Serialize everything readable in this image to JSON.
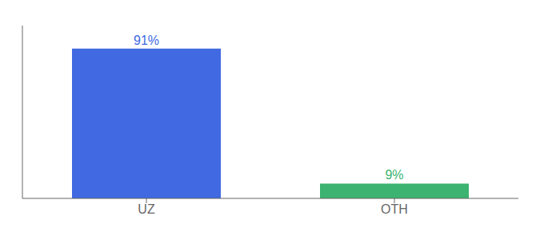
{
  "chart_data": {
    "type": "bar",
    "categories": [
      "UZ",
      "OTH"
    ],
    "values": [
      91,
      9
    ],
    "value_labels": [
      "91%",
      "9%"
    ],
    "colors": [
      "#4169E1",
      "#3CB371"
    ],
    "ylim": [
      0,
      105
    ],
    "data_labels": true,
    "tick_labels": "x",
    "grid": false
  }
}
